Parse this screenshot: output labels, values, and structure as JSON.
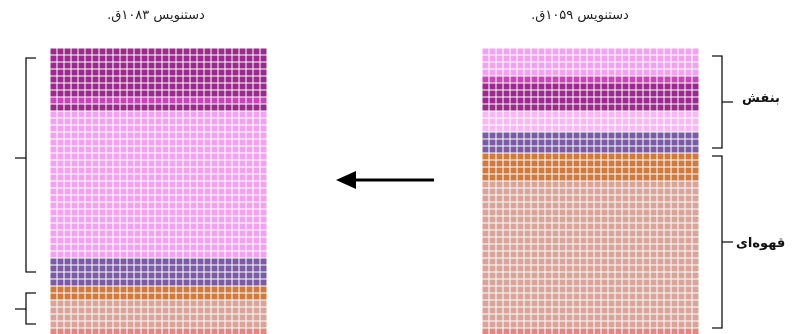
{
  "titles": {
    "left": "دستنویس ۱۰۸۳ق.",
    "right": "دستنویس ۱۰۵۹ق."
  },
  "labels": {
    "violet": "بنفش",
    "brown": "قهوه‌ای"
  },
  "colors": {
    "deep_magenta": "#9b2a8e",
    "magenta": "#c944b6",
    "light_pink": "#f2a3ee",
    "pale_pink": "#f6b9f2",
    "violet": "#7a5ba4",
    "dark_violet": "#4d2f85",
    "orange_brown": "#d07a3e",
    "rose_brown": "#d8a59a",
    "salmon": "#dd8a82",
    "red": "#c41e28",
    "grid_line": "#ffffff"
  },
  "grid_left": {
    "cols": 31,
    "rows": 41,
    "rows_pattern": [
      {
        "count": 7,
        "color": "deep_magenta"
      },
      {
        "count": 1,
        "color": "magenta"
      },
      {
        "count": 1,
        "color": "deep_magenta"
      },
      {
        "count": 21,
        "color": "light_pink"
      },
      {
        "count": 4,
        "color": "violet"
      },
      {
        "count": 2,
        "color": "orange_brown"
      },
      {
        "count": 4,
        "color": "rose_brown"
      },
      {
        "count": 1,
        "color": "salmon"
      }
    ]
  },
  "grid_right": {
    "cols": 31,
    "rows": 41,
    "rows_pattern": [
      {
        "count": 4,
        "color": "light_pink"
      },
      {
        "count": 1,
        "color": "magenta"
      },
      {
        "count": 4,
        "color": "deep_magenta"
      },
      {
        "count": 3,
        "color": "pale_pink"
      },
      {
        "count": 3,
        "color": "violet"
      },
      {
        "count": 4,
        "color": "orange_brown"
      },
      {
        "count": 21,
        "color": "rose_brown"
      },
      {
        "count": 1,
        "color": "salmon"
      }
    ]
  }
}
